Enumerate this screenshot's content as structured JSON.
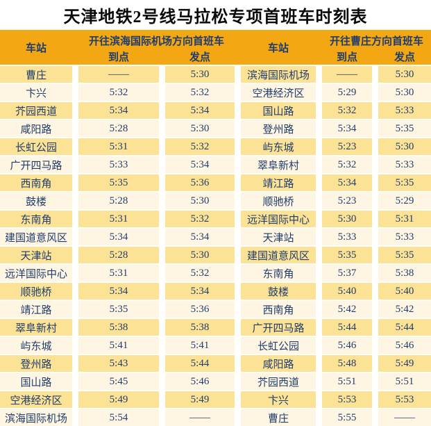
{
  "title": "天津地铁2号线马拉松专项首班车时刻表",
  "colors": {
    "header_bg": "#F2A713",
    "row_odd_bg": "#FBE294",
    "row_even_bg": "#FEF6E2",
    "text": "#1F3C6F",
    "title_text": "#0A0A0A",
    "page_bg": "#FFFFFF"
  },
  "tables": [
    {
      "station_header": "车站",
      "direction_header": "开往滨海国际机场方向首班车",
      "arrive_header": "到点",
      "depart_header": "发点",
      "rows": [
        [
          "曹庄",
          "——",
          "5:30"
        ],
        [
          "卞兴",
          "5:32",
          "5:32"
        ],
        [
          "芥园西道",
          "5:34",
          "5:34"
        ],
        [
          "咸阳路",
          "5:28",
          "5:30"
        ],
        [
          "长虹公园",
          "5:31",
          "5:32"
        ],
        [
          "广开四马路",
          "5:33",
          "5:34"
        ],
        [
          "西南角",
          "5:35",
          "5:36"
        ],
        [
          "鼓楼",
          "5:28",
          "5:30"
        ],
        [
          "东南角",
          "5:31",
          "5:32"
        ],
        [
          "建国道意风区",
          "5:34",
          "5:34"
        ],
        [
          "天津站",
          "5:28",
          "5:30"
        ],
        [
          "远洋国际中心",
          "5:31",
          "5:32"
        ],
        [
          "顺驰桥",
          "5:34",
          "5:34"
        ],
        [
          "靖江路",
          "5:35",
          "5:36"
        ],
        [
          "翠阜新村",
          "5:38",
          "5:38"
        ],
        [
          "屿东城",
          "5:41",
          "5:41"
        ],
        [
          "登州路",
          "5:43",
          "5:44"
        ],
        [
          "国山路",
          "5:45",
          "5:46"
        ],
        [
          "空港经济区",
          "5:49",
          "5:49"
        ],
        [
          "滨海国际机场",
          "5:54",
          "——"
        ]
      ]
    },
    {
      "station_header": "车站",
      "direction_header": "开往曹庄方向首班车",
      "arrive_header": "到点",
      "depart_header": "发点",
      "rows": [
        [
          "滨海国际机场",
          "——",
          "5:30"
        ],
        [
          "空港经济区",
          "5:29",
          "5:30"
        ],
        [
          "国山路",
          "5:32",
          "5:33"
        ],
        [
          "登州路",
          "5:34",
          "5:35"
        ],
        [
          "屿东城",
          "5:23",
          "5:30"
        ],
        [
          "翠阜新村",
          "5:32",
          "5:33"
        ],
        [
          "靖江路",
          "5:34",
          "5:35"
        ],
        [
          "顺驰桥",
          "5:23",
          "5:29"
        ],
        [
          "远洋国际中心",
          "5:30",
          "5:31"
        ],
        [
          "天津站",
          "5:33",
          "5:33"
        ],
        [
          "建国道意风区",
          "5:35",
          "5:35"
        ],
        [
          "东南角",
          "5:37",
          "5:38"
        ],
        [
          "鼓楼",
          "5:40",
          "5:40"
        ],
        [
          "西南角",
          "5:42",
          "5:42"
        ],
        [
          "广开四马路",
          "5:44",
          "5:44"
        ],
        [
          "长虹公园",
          "5:46",
          "5:46"
        ],
        [
          "咸阳路",
          "5:48",
          "5:49"
        ],
        [
          "芥园西道",
          "5:51",
          "5:51"
        ],
        [
          "卞兴",
          "5:53",
          "5:53"
        ],
        [
          "曹庄",
          "5:55",
          "——"
        ]
      ]
    }
  ]
}
